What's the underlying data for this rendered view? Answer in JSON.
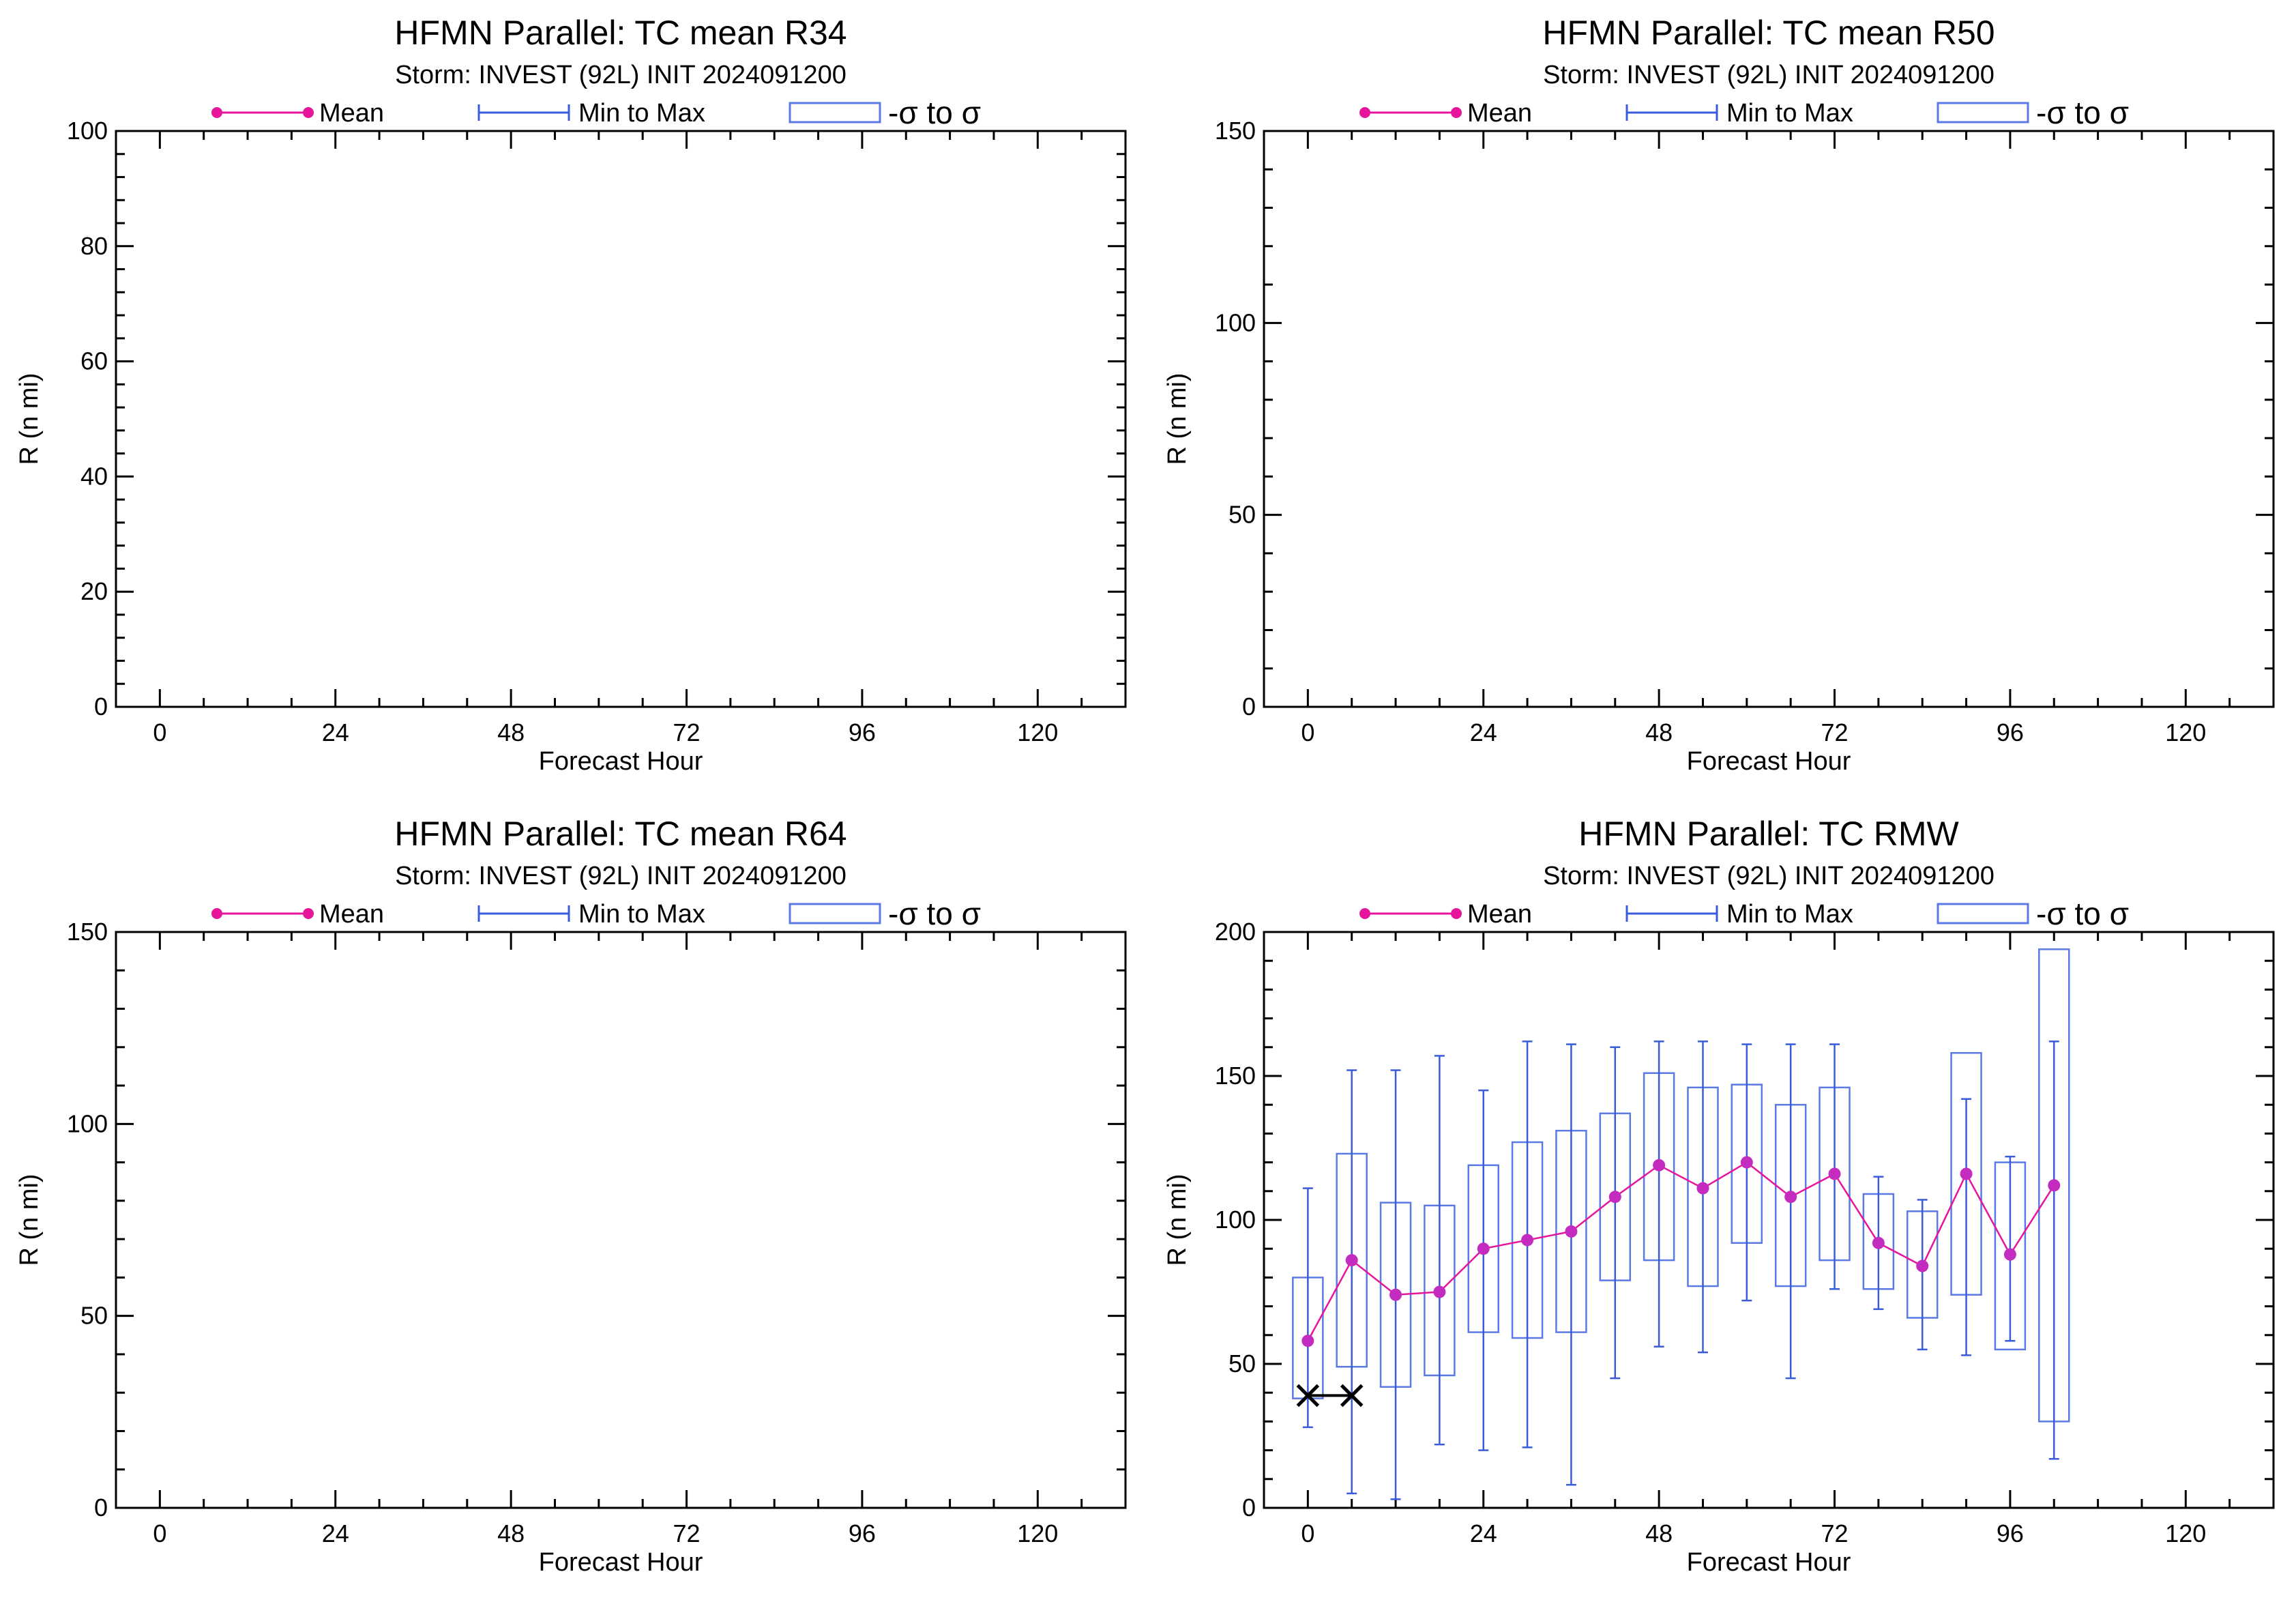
{
  "colors": {
    "mean": "#e6159b",
    "mean_marker": "#c42cc0",
    "minmax": "#3a5bdc",
    "sigma_box": "#5b7ae6",
    "obs": "#000000",
    "axis": "#000000"
  },
  "chart_data": [
    {
      "type": "box",
      "title": "HFMN Parallel: TC mean R34",
      "subtitle": "Storm: INVEST (92L) INIT 2024091200",
      "legend": {
        "mean": "Mean",
        "minmax": "Min to Max",
        "sigma": "-σ to σ",
        "position": "top"
      },
      "xlabel": "Forecast Hour",
      "ylabel": "R (n mi)",
      "xlim": [
        -6,
        132
      ],
      "ylim": [
        0,
        100
      ],
      "xticks": [
        0,
        24,
        48,
        72,
        96,
        120
      ],
      "xtick_labels": [
        "0",
        "24",
        "48",
        "72",
        "96",
        "120"
      ],
      "yticks": [
        0,
        20,
        40,
        60,
        80,
        100
      ],
      "ytick_labels": [
        "0",
        "20",
        "40",
        "60",
        "80",
        "100"
      ],
      "points": [],
      "observed": []
    },
    {
      "type": "box",
      "title": "HFMN Parallel: TC mean R50",
      "subtitle": "Storm: INVEST (92L) INIT 2024091200",
      "legend": {
        "mean": "Mean",
        "minmax": "Min to Max",
        "sigma": "-σ to σ",
        "position": "top"
      },
      "xlabel": "Forecast Hour",
      "ylabel": "R (n mi)",
      "xlim": [
        -6,
        132
      ],
      "ylim": [
        0,
        150
      ],
      "xticks": [
        0,
        24,
        48,
        72,
        96,
        120
      ],
      "xtick_labels": [
        "0",
        "24",
        "48",
        "72",
        "96",
        "120"
      ],
      "yticks": [
        0,
        50,
        100,
        150
      ],
      "ytick_labels": [
        "0",
        "50",
        "100",
        "150"
      ],
      "points": [],
      "observed": []
    },
    {
      "type": "box",
      "title": "HFMN Parallel: TC mean R64",
      "subtitle": "Storm: INVEST (92L) INIT 2024091200",
      "legend": {
        "mean": "Mean",
        "minmax": "Min to Max",
        "sigma": "-σ to σ",
        "position": "top"
      },
      "xlabel": "Forecast Hour",
      "ylabel": "R (n mi)",
      "xlim": [
        -6,
        132
      ],
      "ylim": [
        0,
        150
      ],
      "xticks": [
        0,
        24,
        48,
        72,
        96,
        120
      ],
      "xtick_labels": [
        "0",
        "24",
        "48",
        "72",
        "96",
        "120"
      ],
      "yticks": [
        0,
        50,
        100,
        150
      ],
      "ytick_labels": [
        "0",
        "50",
        "100",
        "150"
      ],
      "points": [],
      "observed": []
    },
    {
      "type": "box",
      "title": "HFMN Parallel: TC RMW",
      "subtitle": "Storm: INVEST (92L) INIT 2024091200",
      "legend": {
        "mean": "Mean",
        "minmax": "Min to Max",
        "sigma": "-σ to σ",
        "position": "top"
      },
      "xlabel": "Forecast Hour",
      "ylabel": "R (n mi)",
      "xlim": [
        -6,
        132
      ],
      "ylim": [
        0,
        200
      ],
      "xticks": [
        0,
        24,
        48,
        72,
        96,
        120
      ],
      "xtick_labels": [
        "0",
        "24",
        "48",
        "72",
        "96",
        "120"
      ],
      "yticks": [
        0,
        50,
        100,
        150,
        200
      ],
      "ytick_labels": [
        "0",
        "50",
        "100",
        "150",
        "200"
      ],
      "points": [
        {
          "hour": 0,
          "mean": 58,
          "min": 28,
          "max": 111,
          "sig_lo": 38,
          "sig_hi": 80
        },
        {
          "hour": 6,
          "mean": 86,
          "min": 5,
          "max": 152,
          "sig_lo": 49,
          "sig_hi": 123
        },
        {
          "hour": 12,
          "mean": 74,
          "min": 3,
          "max": 152,
          "sig_lo": 42,
          "sig_hi": 106
        },
        {
          "hour": 18,
          "mean": 75,
          "min": 22,
          "max": 157,
          "sig_lo": 46,
          "sig_hi": 105
        },
        {
          "hour": 24,
          "mean": 90,
          "min": 20,
          "max": 145,
          "sig_lo": 61,
          "sig_hi": 119
        },
        {
          "hour": 30,
          "mean": 93,
          "min": 21,
          "max": 162,
          "sig_lo": 59,
          "sig_hi": 127
        },
        {
          "hour": 36,
          "mean": 96,
          "min": 8,
          "max": 161,
          "sig_lo": 61,
          "sig_hi": 131
        },
        {
          "hour": 42,
          "mean": 108,
          "min": 45,
          "max": 160,
          "sig_lo": 79,
          "sig_hi": 137
        },
        {
          "hour": 48,
          "mean": 119,
          "min": 56,
          "max": 162,
          "sig_lo": 86,
          "sig_hi": 151
        },
        {
          "hour": 54,
          "mean": 111,
          "min": 54,
          "max": 162,
          "sig_lo": 77,
          "sig_hi": 146
        },
        {
          "hour": 60,
          "mean": 120,
          "min": 72,
          "max": 161,
          "sig_lo": 92,
          "sig_hi": 147
        },
        {
          "hour": 66,
          "mean": 108,
          "min": 45,
          "max": 161,
          "sig_lo": 77,
          "sig_hi": 140
        },
        {
          "hour": 72,
          "mean": 116,
          "min": 76,
          "max": 161,
          "sig_lo": 86,
          "sig_hi": 146
        },
        {
          "hour": 78,
          "mean": 92,
          "min": 69,
          "max": 115,
          "sig_lo": 76,
          "sig_hi": 109
        },
        {
          "hour": 84,
          "mean": 84,
          "min": 55,
          "max": 107,
          "sig_lo": 66,
          "sig_hi": 103
        },
        {
          "hour": 90,
          "mean": 116,
          "min": 53,
          "max": 142,
          "sig_lo": 74,
          "sig_hi": 158
        },
        {
          "hour": 96,
          "mean": 88,
          "min": 58,
          "max": 122,
          "sig_lo": 55,
          "sig_hi": 120
        },
        {
          "hour": 102,
          "mean": 112,
          "min": 17,
          "max": 162,
          "sig_lo": 30,
          "sig_hi": 194
        }
      ],
      "observed": [
        {
          "hour": 0,
          "value": 39
        },
        {
          "hour": 6,
          "value": 39
        }
      ]
    }
  ]
}
